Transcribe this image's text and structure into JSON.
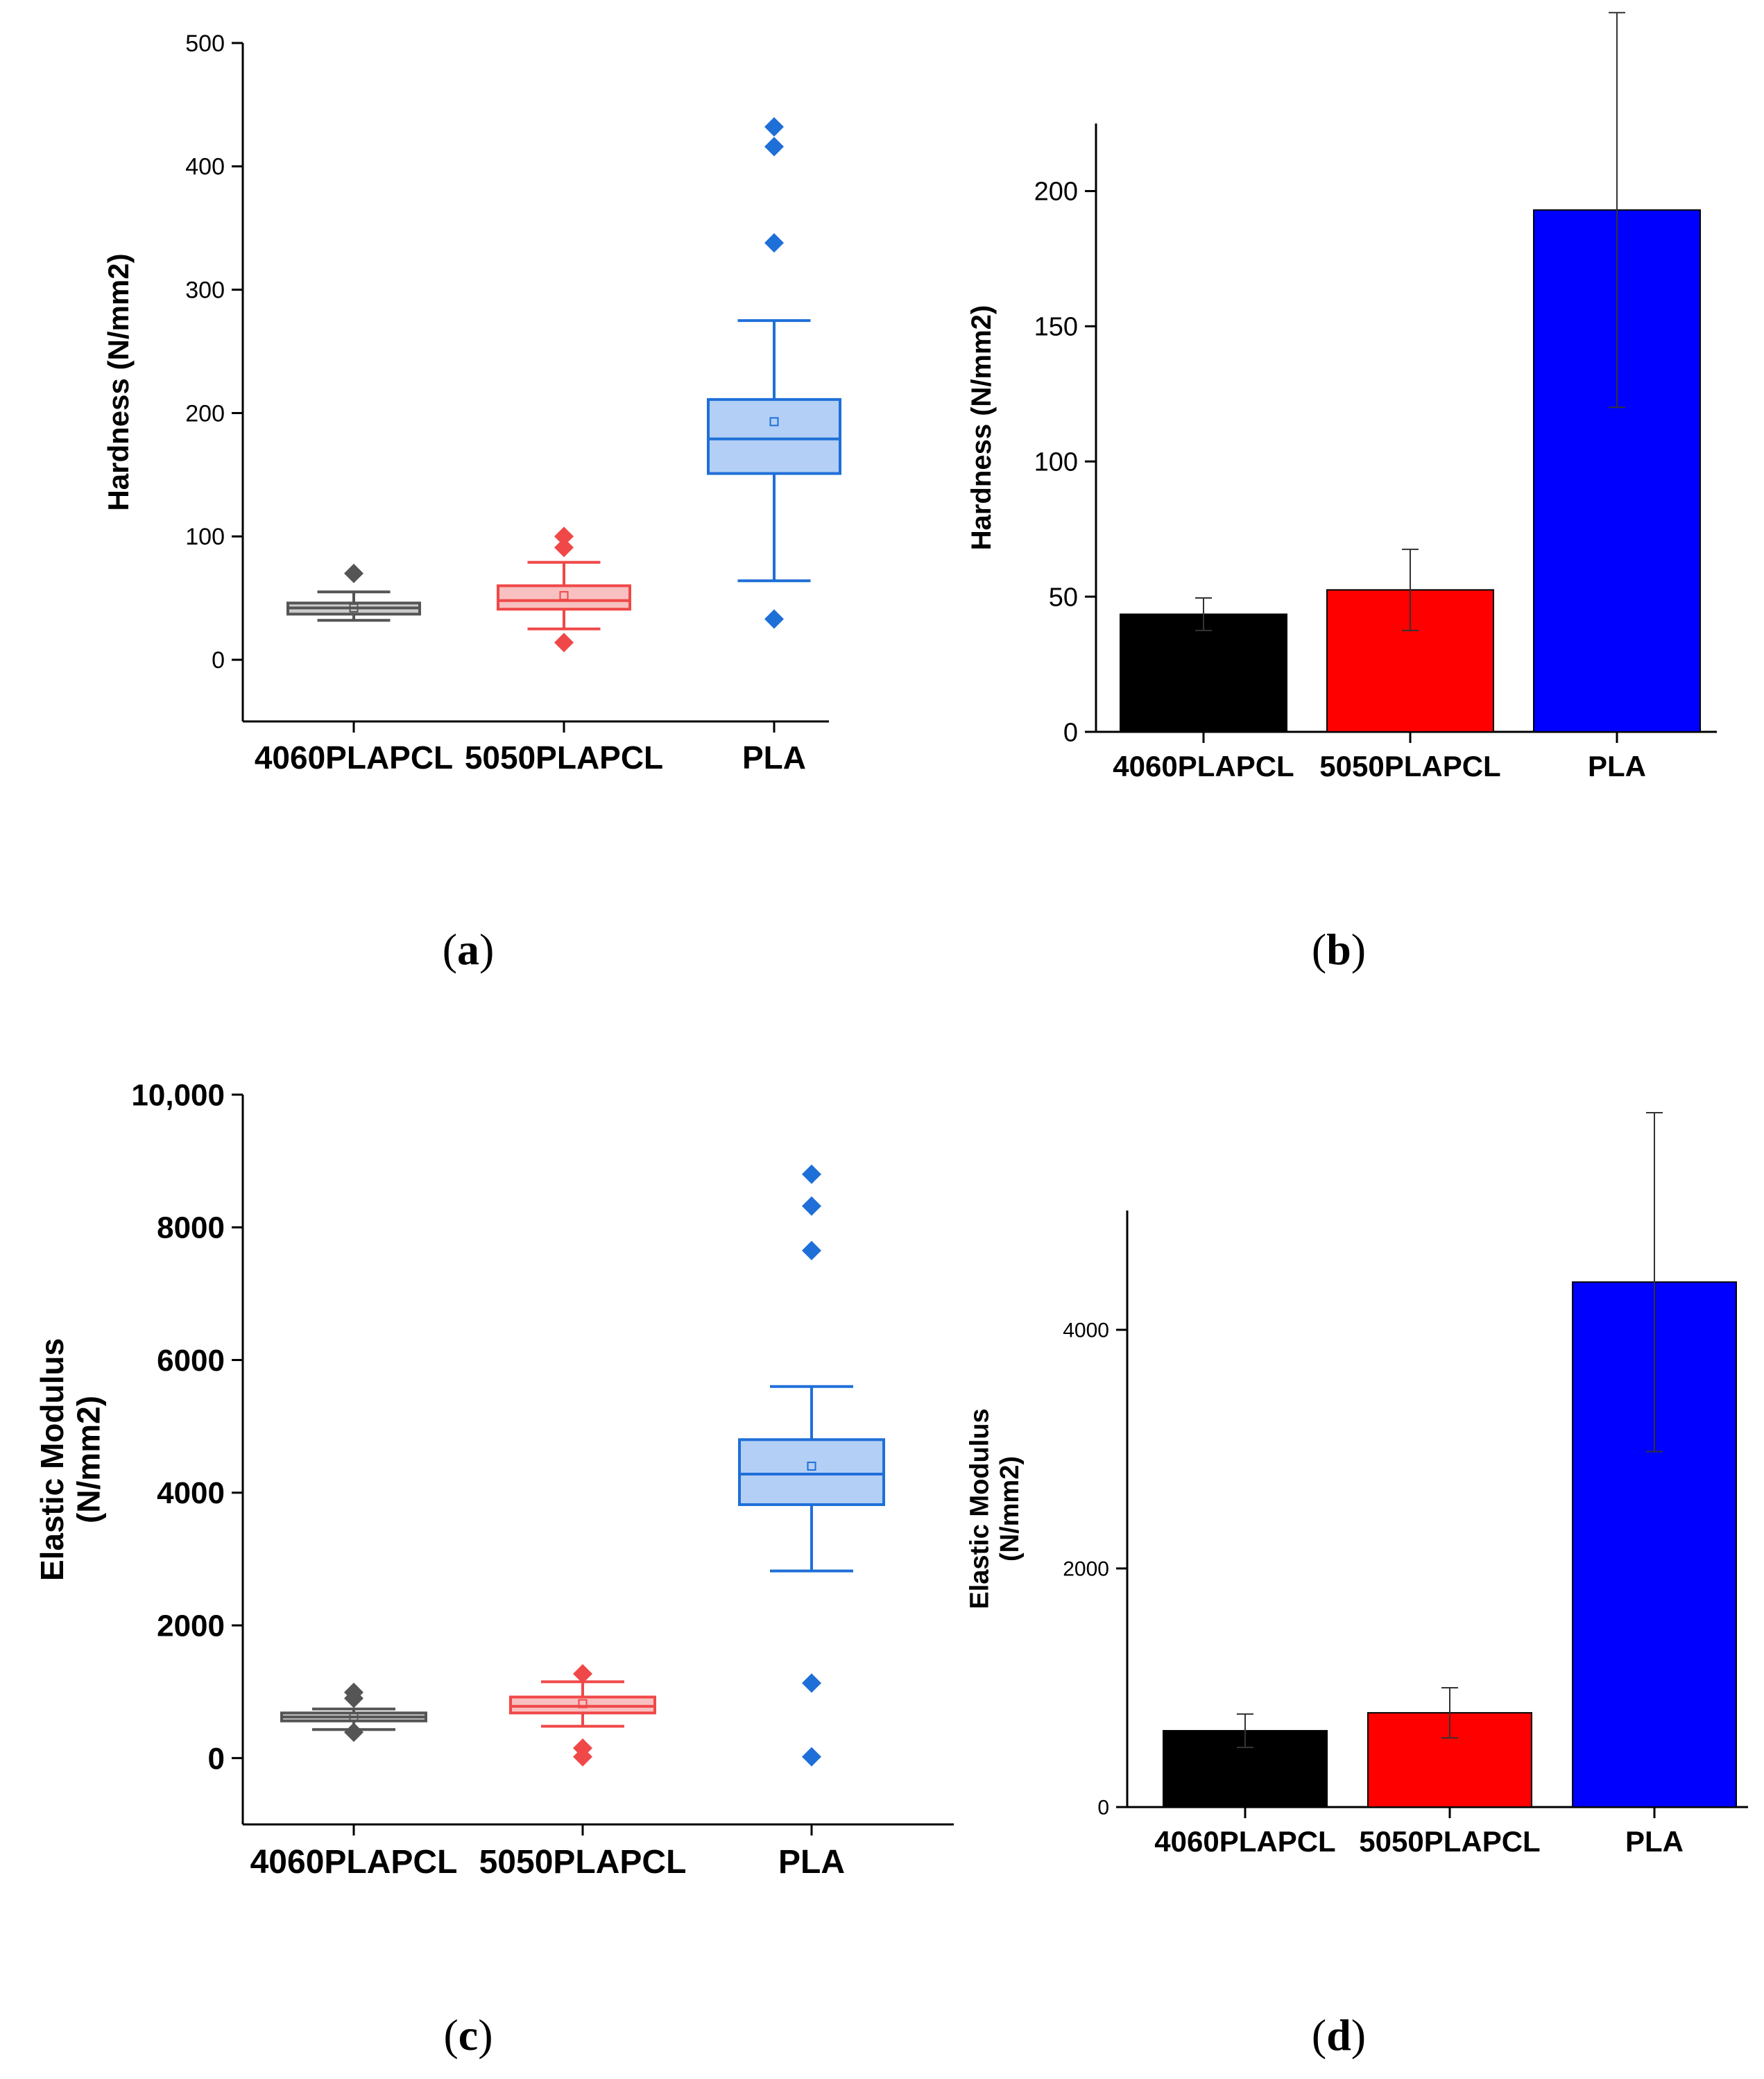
{
  "chart_data": [
    {
      "panel": "a",
      "type": "box",
      "caption": "a",
      "ylabel": "Hardness (N/mm2)",
      "ylim": [
        -50,
        500
      ],
      "yticks": [
        "0",
        "100",
        "200",
        "300",
        "400",
        "500"
      ],
      "categories": [
        "4060PLAPCL",
        "5050PLAPCL",
        "PLA"
      ],
      "colors": {
        "4060PLAPCL": "#555555",
        "5050PLAPCL": "#f04848",
        "PLA": "#1f6fd8"
      },
      "fills": {
        "4060PLAPCL": "#cccccc",
        "5050PLAPCL": "#f8c0c0",
        "PLA": "#b3cff5"
      },
      "boxes": [
        {
          "name": "4060PLAPCL",
          "whisker_low": 32,
          "q1": 37,
          "median": 42,
          "q3": 46,
          "whisker_high": 55,
          "mean": 42,
          "outliers": [
            70
          ]
        },
        {
          "name": "5050PLAPCL",
          "whisker_low": 25,
          "q1": 41,
          "median": 48,
          "q3": 60,
          "whisker_high": 79,
          "mean": 52,
          "outliers": [
            14,
            91,
            100
          ]
        },
        {
          "name": "PLA",
          "whisker_low": 64,
          "q1": 151,
          "median": 179,
          "q3": 211,
          "whisker_high": 275,
          "mean": 193,
          "outliers": [
            33,
            338,
            416,
            432
          ]
        }
      ]
    },
    {
      "panel": "b",
      "type": "bar",
      "caption": "b",
      "ylabel": "Hardness (N/mm2)",
      "ylim": [
        0,
        225
      ],
      "yticks": [
        "0",
        "50",
        "100",
        "150",
        "200"
      ],
      "categories": [
        "4060PLAPCL",
        "5050PLAPCL",
        "PLA"
      ],
      "values": [
        43.5,
        52.5,
        193
      ],
      "errors": [
        6,
        15,
        73
      ],
      "colors": [
        "#000000",
        "#ff0000",
        "#0000ff"
      ]
    },
    {
      "panel": "c",
      "type": "box",
      "caption": "c",
      "ylabel": "Elastic Modulus (N/mm2)",
      "ylabel_lines": [
        "Elastic Modulus",
        "(N/mm2)"
      ],
      "ylim": [
        -1000,
        10000
      ],
      "yticks": [
        "0",
        "2000",
        "4000",
        "6000",
        "8000",
        "10,000"
      ],
      "categories": [
        "4060PLAPCL",
        "5050PLAPCL",
        "PLA"
      ],
      "colors": {
        "4060PLAPCL": "#555555",
        "5050PLAPCL": "#f04848",
        "PLA": "#1f6fd8"
      },
      "fills": {
        "4060PLAPCL": "#cccccc",
        "5050PLAPCL": "#f8c0c0",
        "PLA": "#b3cff5"
      },
      "boxes": [
        {
          "name": "4060PLAPCL",
          "whisker_low": 430,
          "q1": 560,
          "median": 620,
          "q3": 680,
          "whisker_high": 740,
          "mean": 620,
          "outliers": [
            390,
            900,
            990
          ]
        },
        {
          "name": "5050PLAPCL",
          "whisker_low": 480,
          "q1": 680,
          "median": 780,
          "q3": 920,
          "whisker_high": 1150,
          "mean": 820,
          "outliers": [
            20,
            150,
            1270
          ]
        },
        {
          "name": "PLA",
          "whisker_low": 2820,
          "q1": 3820,
          "median": 4280,
          "q3": 4800,
          "whisker_high": 5600,
          "mean": 4400,
          "outliers": [
            20,
            1130,
            7650,
            8320,
            8800
          ]
        }
      ]
    },
    {
      "panel": "d",
      "type": "bar",
      "caption": "d",
      "ylabel": "Elastic Modulus (N/mm2)",
      "ylabel_lines": [
        "Elastic Modulus",
        "(N/mm2)"
      ],
      "ylim": [
        0,
        5000
      ],
      "yticks": [
        "0",
        "2000",
        "4000"
      ],
      "categories": [
        "4060PLAPCL",
        "5050PLAPCL",
        "PLA"
      ],
      "values": [
        640,
        790,
        4400
      ],
      "errors": [
        140,
        210,
        1420
      ],
      "colors": [
        "#000000",
        "#ff0000",
        "#0000ff"
      ]
    }
  ]
}
